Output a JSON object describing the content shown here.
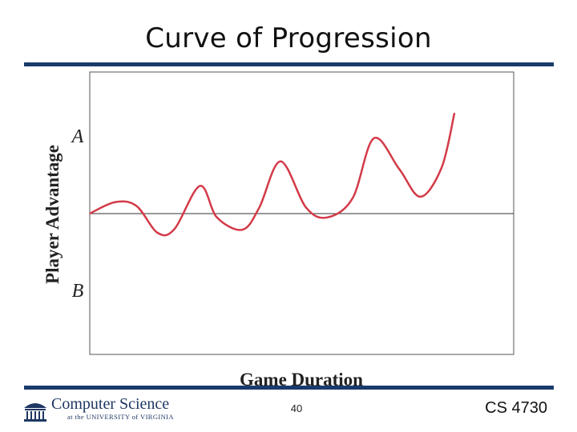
{
  "slide": {
    "title": "Curve of Progression",
    "page_number": "40",
    "course": "CS 4730",
    "logo": {
      "name": "Computer Science",
      "subtitle": "at the UNIVERSITY of VIRGINIA",
      "icon": "rotunda-icon"
    },
    "colors": {
      "rule": "#1a3a6b",
      "curve": "#d33a48",
      "axis": "#333333"
    }
  },
  "chart_data": {
    "type": "line",
    "xlabel": "Game Duration",
    "ylabel": "Player Advantage",
    "y_markers": [
      "A",
      "B"
    ],
    "baseline": "even advantage (horizontal line)",
    "series": [
      {
        "x": [
          0,
          0.06,
          0.11,
          0.16,
          0.2,
          0.26,
          0.3,
          0.36,
          0.4,
          0.45,
          0.51,
          0.56,
          0.62,
          0.67,
          0.73,
          0.78,
          0.83,
          0.86
        ],
        "y": [
          0,
          0.15,
          0.1,
          -0.25,
          -0.2,
          0.36,
          -0.05,
          -0.21,
          0.08,
          0.68,
          0.08,
          -0.05,
          0.2,
          0.98,
          0.58,
          0.22,
          0.6,
          1.3
        ]
      }
    ],
    "grid": false,
    "legend": "none"
  }
}
